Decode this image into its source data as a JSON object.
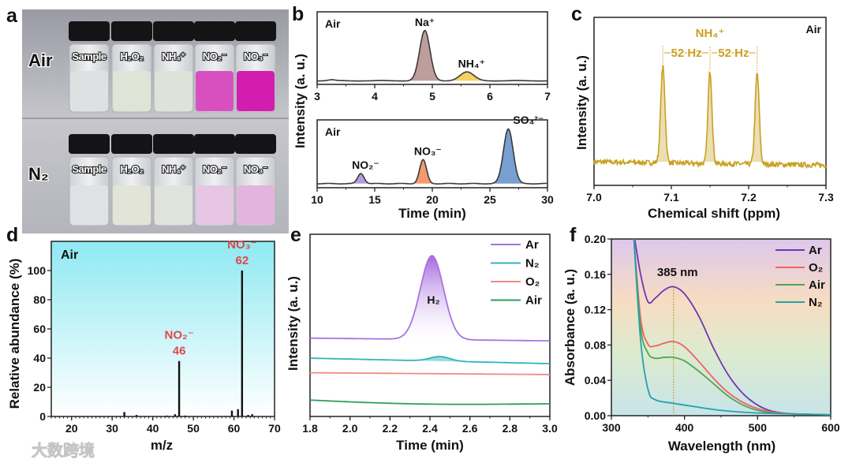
{
  "panel_labels": {
    "a": "a",
    "b": "b",
    "c": "c",
    "d": "d",
    "e": "e",
    "f": "f"
  },
  "watermark": "大数跨境",
  "photo": {
    "rows": [
      {
        "label": "Air",
        "liquid_colors": [
          "#dde1e2",
          "#e0e4d6",
          "#dfe2d8",
          "#d850c0",
          "#d21db0"
        ]
      },
      {
        "label": "N₂",
        "liquid_colors": [
          "#dfe2e4",
          "#e2e4d8",
          "#e0e3dc",
          "#e6c6e2",
          "#e2b4de"
        ]
      }
    ],
    "vial_labels": [
      "Sample",
      "H₂O₂",
      "NH₄⁺",
      "NO₂⁻",
      "NO₃⁻"
    ]
  },
  "chart_data": [
    {
      "id": "b-top",
      "type": "line",
      "ylabel": "Intensity (a. u.)",
      "xlabel": "",
      "annotation": "Air",
      "xlim": [
        3,
        7
      ],
      "ylim": [
        0,
        1
      ],
      "xticks": [
        3,
        4,
        5,
        6,
        7
      ],
      "baseline": 0.05,
      "peaks": [
        {
          "label": "",
          "center": 3.25,
          "height": 0.012,
          "width": 0.06,
          "color": ""
        },
        {
          "label": "Na⁺",
          "center": 4.87,
          "height": 0.69,
          "width": 0.09,
          "color": "#a87c7c"
        },
        {
          "label": "NH₄⁺",
          "center": 5.6,
          "height": 0.12,
          "width": 0.12,
          "color": "#f2c12e"
        }
      ]
    },
    {
      "id": "b-bottom",
      "type": "line",
      "ylabel": "",
      "xlabel": "Time (min)",
      "annotation": "Air",
      "xlim": [
        10,
        30
      ],
      "ylim": [
        0,
        1
      ],
      "xticks": [
        10,
        15,
        20,
        25,
        30
      ],
      "baseline": 0.06,
      "peaks": [
        {
          "label": "NO₂⁻",
          "center": 13.8,
          "height": 0.15,
          "width": 0.28,
          "color": "#9a7fd6"
        },
        {
          "label": "NO₃⁻",
          "center": 19.2,
          "height": 0.35,
          "width": 0.3,
          "color": "#f07a3c"
        },
        {
          "label": "SO₄²⁻",
          "center": 26.6,
          "height": 0.81,
          "width": 0.42,
          "color": "#4a7fc2"
        }
      ]
    },
    {
      "id": "c",
      "type": "line",
      "ylabel": "Intensity (a. u.)",
      "xlabel": "Chemical shift (ppm)",
      "annotation": "Air",
      "xlim": [
        7.0,
        7.3
      ],
      "ylim": [
        0,
        1
      ],
      "xticks": [
        7.0,
        7.1,
        7.2,
        7.3
      ],
      "baseline": 0.14,
      "noise": 0.03,
      "color": "#c9a021",
      "title_annotation": "NH₄⁺",
      "coupling_labels": [
        "52 Hz",
        "52 Hz"
      ],
      "peaks": [
        {
          "center": 7.089,
          "height": 0.57,
          "width": 0.0028
        },
        {
          "center": 7.15,
          "height": 0.55,
          "width": 0.0026
        },
        {
          "center": 7.211,
          "height": 0.54,
          "width": 0.0027
        }
      ]
    },
    {
      "id": "d",
      "type": "bar",
      "ylabel": "Relative abundance (%)",
      "xlabel": "m/z",
      "annotation": "Air",
      "xlim": [
        15,
        70
      ],
      "ylim": [
        0,
        120
      ],
      "xticks": [
        20,
        30,
        40,
        50,
        60,
        70
      ],
      "yticks": [
        0,
        20,
        40,
        60,
        80,
        100
      ],
      "bars": [
        [
          33,
          3
        ],
        [
          36,
          1
        ],
        [
          43.5,
          0.6
        ],
        [
          45.5,
          1.5
        ],
        [
          46.5,
          38
        ],
        [
          48,
          0.6
        ],
        [
          59.5,
          4
        ],
        [
          61,
          5
        ],
        [
          62,
          100
        ],
        [
          63.5,
          1
        ],
        [
          64.5,
          1.5
        ]
      ],
      "peak_labels": [
        {
          "ion": "NO₂⁻",
          "mz": "46",
          "x": 46.5,
          "y": 38
        },
        {
          "ion": "NO₃⁻",
          "mz": "62",
          "x": 62,
          "y": 100
        }
      ],
      "label_color": "#e04848"
    },
    {
      "id": "e",
      "type": "line",
      "ylabel": "Intensity (a. u.)",
      "xlabel": "Time (min)",
      "xlim": [
        1.8,
        3.0
      ],
      "ylim": [
        0,
        1
      ],
      "xticks": [
        1.8,
        2.0,
        2.2,
        2.4,
        2.6,
        2.8,
        3.0
      ],
      "peak_label": "H₂",
      "series": [
        {
          "name": "Ar",
          "color": "#a774e0",
          "base": [
            0.43,
            0.415
          ],
          "peak": {
            "center": 2.41,
            "height": 0.46,
            "width": 0.058
          }
        },
        {
          "name": "N₂",
          "color": "#33b3bb",
          "base": [
            0.32,
            0.29
          ],
          "peak": {
            "center": 2.45,
            "height": 0.025,
            "width": 0.05
          }
        },
        {
          "name": "O₂",
          "color": "#f08a86",
          "base": [
            0.24,
            0.23
          ],
          "peak": null
        },
        {
          "name": "Air",
          "color": "#2f9e5c",
          "base": [
            0.09,
            0.065
          ],
          "peak": null
        }
      ]
    },
    {
      "id": "f",
      "type": "line",
      "ylabel": "Absorbance (a. u.)",
      "xlabel": "Wavelength (nm)",
      "xlim": [
        300,
        600
      ],
      "ylim": [
        0,
        0.2
      ],
      "xticks": [
        300,
        400,
        500,
        600
      ],
      "yticks": [
        0,
        0.04,
        0.08,
        0.12,
        0.16,
        0.2
      ],
      "marker": {
        "x": 385,
        "label": "385 nm"
      },
      "series": [
        {
          "name": "Ar",
          "color": "#7434b4",
          "points": [
            [
              330,
              0.21
            ],
            [
              340,
              0.16
            ],
            [
              350,
              0.129
            ],
            [
              360,
              0.133
            ],
            [
              372,
              0.142
            ],
            [
              385,
              0.146
            ],
            [
              400,
              0.138
            ],
            [
              420,
              0.112
            ],
            [
              440,
              0.076
            ],
            [
              460,
              0.046
            ],
            [
              480,
              0.025
            ],
            [
              500,
              0.012
            ],
            [
              520,
              0.005
            ],
            [
              550,
              0.002
            ],
            [
              600,
              0.001
            ]
          ]
        },
        {
          "name": "O₂",
          "color": "#f06262",
          "points": [
            [
              330,
              0.21
            ],
            [
              340,
              0.11
            ],
            [
              350,
              0.081
            ],
            [
              360,
              0.079
            ],
            [
              372,
              0.082
            ],
            [
              385,
              0.084
            ],
            [
              400,
              0.078
            ],
            [
              420,
              0.061
            ],
            [
              440,
              0.042
            ],
            [
              460,
              0.026
            ],
            [
              480,
              0.015
            ],
            [
              500,
              0.008
            ],
            [
              520,
              0.004
            ],
            [
              550,
              0.002
            ],
            [
              600,
              0.001
            ]
          ]
        },
        {
          "name": "Air",
          "color": "#52a452",
          "points": [
            [
              330,
              0.21
            ],
            [
              340,
              0.1
            ],
            [
              350,
              0.071
            ],
            [
              360,
              0.065
            ],
            [
              372,
              0.066
            ],
            [
              385,
              0.066
            ],
            [
              400,
              0.062
            ],
            [
              420,
              0.05
            ],
            [
              440,
              0.036
            ],
            [
              460,
              0.022
            ],
            [
              480,
              0.012
            ],
            [
              500,
              0.006
            ],
            [
              520,
              0.003
            ],
            [
              550,
              0.002
            ],
            [
              600,
              0.001
            ]
          ]
        },
        {
          "name": "N₂",
          "color": "#22a3aa",
          "points": [
            [
              330,
              0.21
            ],
            [
              340,
              0.085
            ],
            [
              350,
              0.03
            ],
            [
              360,
              0.018
            ],
            [
              385,
              0.014
            ],
            [
              400,
              0.012
            ],
            [
              450,
              0.006
            ],
            [
              500,
              0.003
            ],
            [
              600,
              0.001
            ]
          ]
        }
      ]
    }
  ]
}
